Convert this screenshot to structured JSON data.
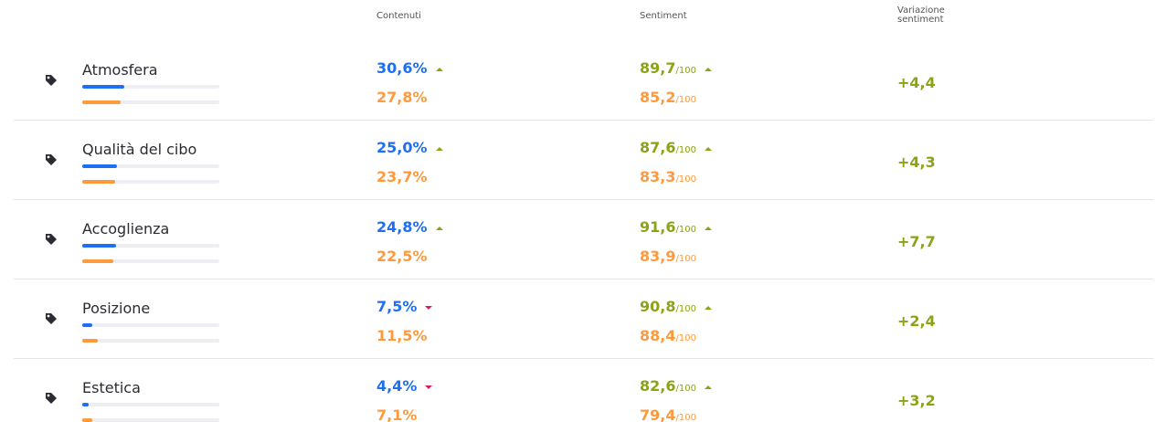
{
  "header": {
    "contents": "Contenuti",
    "sentiment": "Sentiment",
    "variation": [
      "Variazione",
      "sentiment"
    ]
  },
  "sentiment_scale": "/100",
  "table": {
    "rows": [
      {
        "name": "Atmosfera",
        "contents": {
          "value": 30.6,
          "label": "30,6%"
        },
        "contents_prev": {
          "value": 27.8,
          "label": "27,8%"
        },
        "contents_trend": "up",
        "sentiment": "89,7",
        "sentiment_prev": "85,2",
        "sentiment_trend": "up",
        "variation": "+4,4"
      },
      {
        "name": "Qualità del cibo",
        "contents": {
          "value": 25.0,
          "label": "25,0%"
        },
        "contents_prev": {
          "value": 23.7,
          "label": "23,7%"
        },
        "contents_trend": "up",
        "sentiment": "87,6",
        "sentiment_prev": "83,3",
        "sentiment_trend": "up",
        "variation": "+4,3"
      },
      {
        "name": "Accoglienza",
        "contents": {
          "value": 24.8,
          "label": "24,8%"
        },
        "contents_prev": {
          "value": 22.5,
          "label": "22,5%"
        },
        "contents_trend": "up",
        "sentiment": "91,6",
        "sentiment_prev": "83,9",
        "sentiment_trend": "up",
        "variation": "+7,7"
      },
      {
        "name": "Posizione",
        "contents": {
          "value": 7.5,
          "label": "7,5%"
        },
        "contents_prev": {
          "value": 11.5,
          "label": "11,5%"
        },
        "contents_trend": "down",
        "sentiment": "90,8",
        "sentiment_prev": "88,4",
        "sentiment_trend": "up",
        "variation": "+2,4"
      },
      {
        "name": "Estetica",
        "contents": {
          "value": 4.4,
          "label": "4,4%"
        },
        "contents_prev": {
          "value": 7.1,
          "label": "7,1%"
        },
        "contents_trend": "down",
        "sentiment": "82,6",
        "sentiment_prev": "79,4",
        "sentiment_trend": "up",
        "variation": "+3,2"
      }
    ]
  }
}
